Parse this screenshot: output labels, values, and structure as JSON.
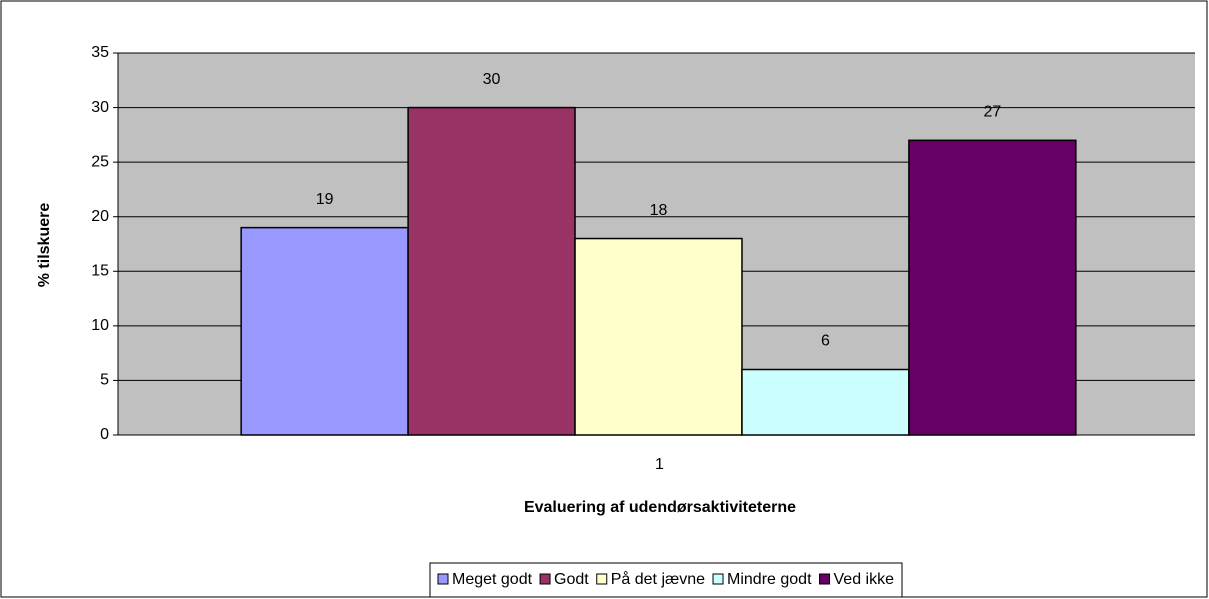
{
  "chart_data": {
    "type": "bar",
    "xlabel": "Evaluering af udendørsaktiviteterne",
    "ylabel": "% tilskuere",
    "categories": [
      "1"
    ],
    "series": [
      {
        "name": "Meget godt",
        "color": "#9999ff",
        "values": [
          19
        ]
      },
      {
        "name": "Godt",
        "color": "#993366",
        "values": [
          30
        ]
      },
      {
        "name": "På det jævne",
        "color": "#ffffcc",
        "values": [
          18
        ]
      },
      {
        "name": "Mindre godt",
        "color": "#ccffff",
        "values": [
          6
        ]
      },
      {
        "name": "Ved ikke",
        "color": "#660066",
        "values": [
          27
        ]
      }
    ],
    "ylim": [
      0,
      35
    ],
    "yticks": [
      0,
      5,
      10,
      15,
      20,
      25,
      30,
      35
    ],
    "grid": true,
    "legend": "bottom",
    "plot_background": "#c0c0c0"
  }
}
